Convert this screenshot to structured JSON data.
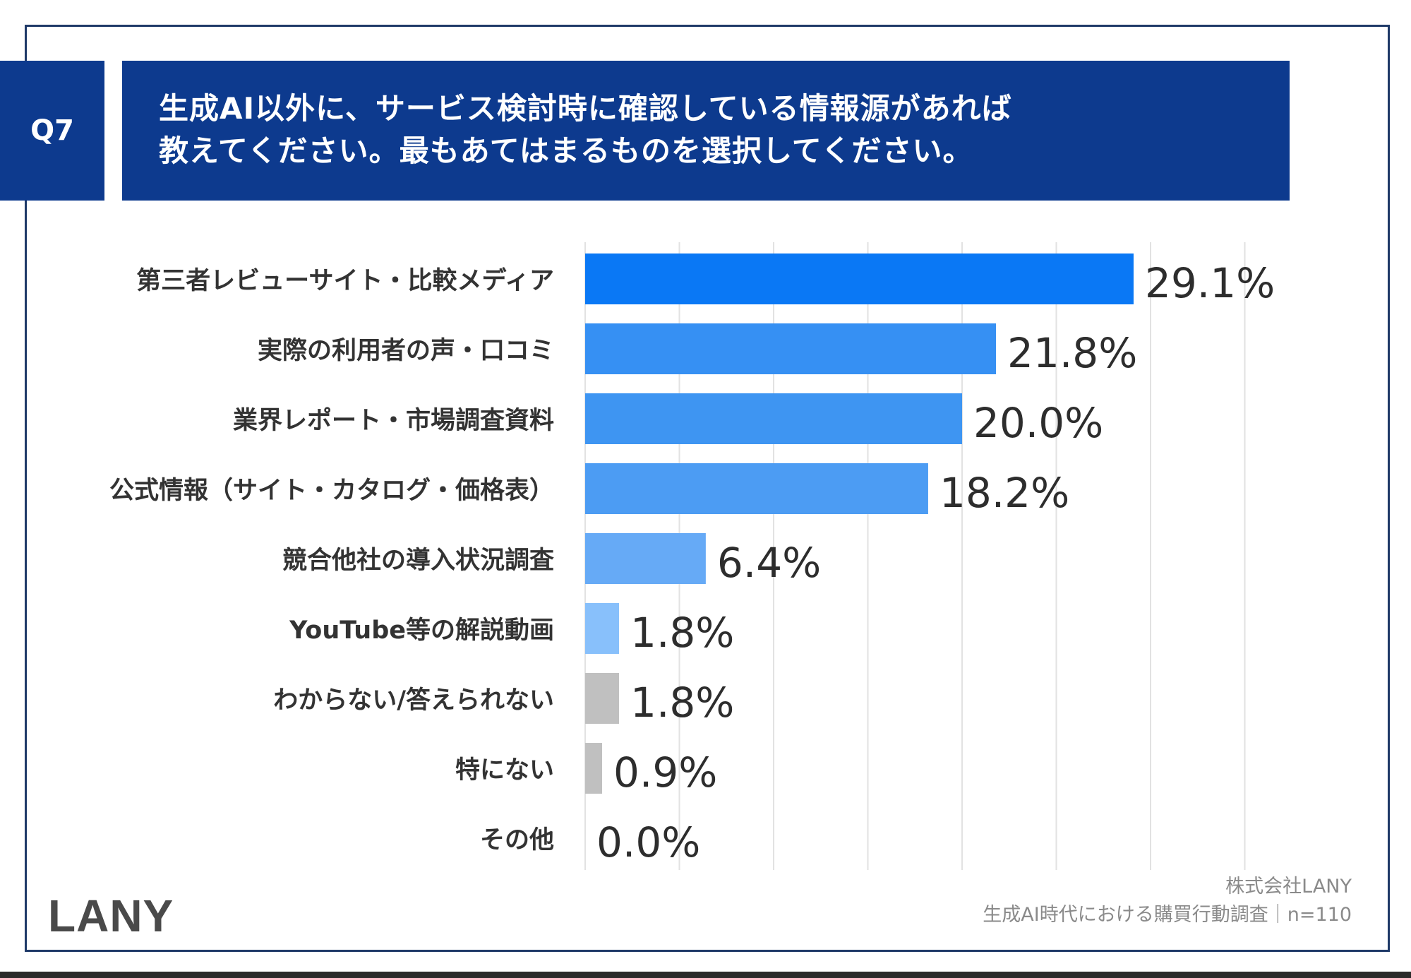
{
  "question": {
    "badge": "Q7",
    "line1": "生成AI以外に、サービス検討時に確認している情報源があれば",
    "line2": "教えてください。最もあてはまるものを選択してください。"
  },
  "chart_data": {
    "type": "bar",
    "orientation": "horizontal",
    "categories": [
      "第三者レビューサイト・比較メディア",
      "実際の利用者の声・口コミ",
      "業界レポート・市場調査資料",
      "公式情報（サイト・カタログ・価格表）",
      "競合他社の導入状況調査",
      "YouTube等の解説動画",
      "わからない/答えられない",
      "特にない",
      "その他"
    ],
    "values": [
      29.1,
      21.8,
      20.0,
      18.2,
      6.4,
      1.8,
      1.8,
      0.9,
      0.0
    ],
    "value_labels": [
      "29.1%",
      "21.8%",
      "20.0%",
      "18.2%",
      "6.4%",
      "1.8%",
      "1.8%",
      "0.9%",
      "0.0%"
    ],
    "colors": [
      "#0a78f5",
      "#3690f3",
      "#3e95f2",
      "#4c9cf3",
      "#66aaf6",
      "#88c0fb",
      "#c0c0c0",
      "#c0c0c0",
      "#c0c0c0"
    ],
    "xlim": [
      0,
      35
    ],
    "grid": true,
    "unit": "%"
  },
  "footer": {
    "logo": "LANY",
    "source_line1": "株式会社LANY",
    "source_line2": "生成AI時代における購買行動調査｜n=110"
  }
}
